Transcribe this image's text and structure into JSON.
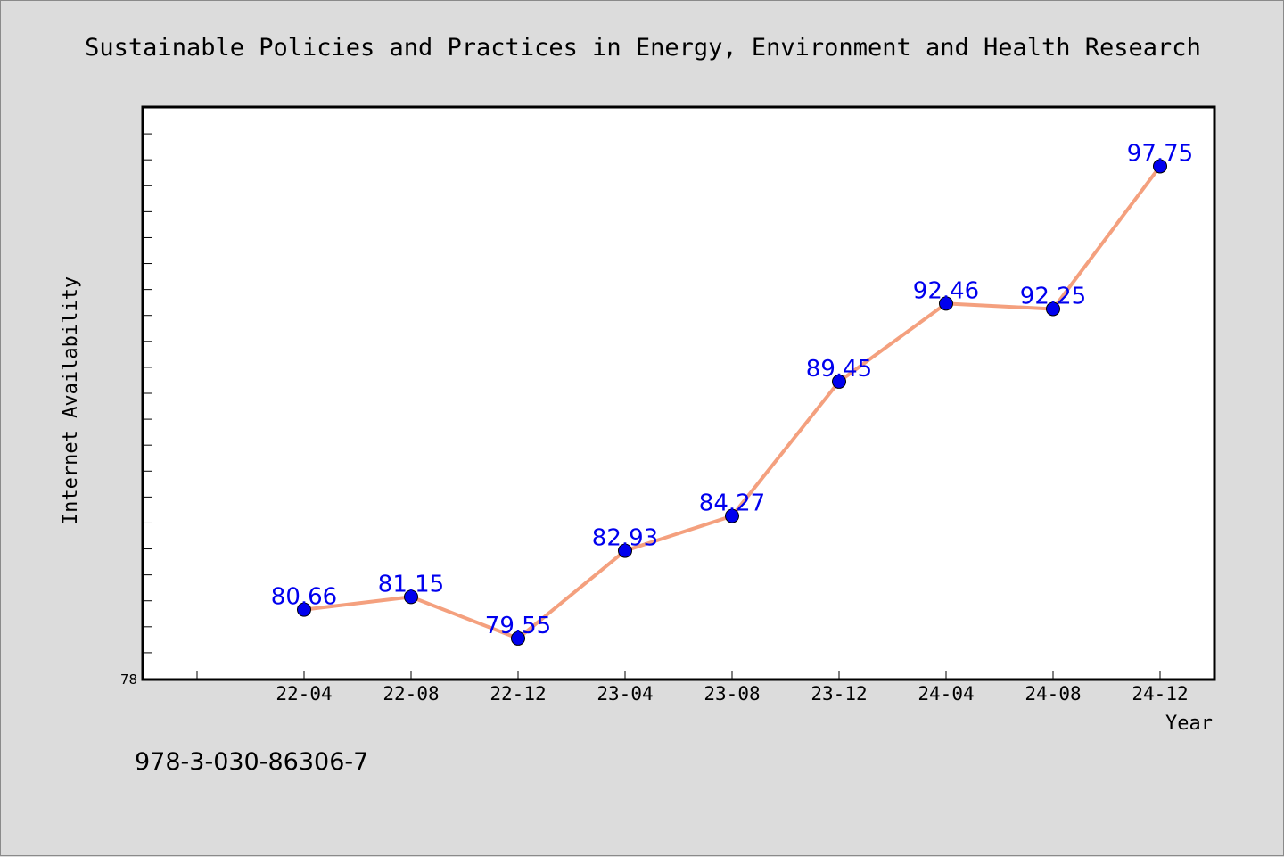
{
  "chart_data": {
    "type": "line",
    "title": "Sustainable Policies and Practices in Energy, Environment and Health Research",
    "xlabel": "Year",
    "ylabel": "Internet Availability",
    "categories": [
      "22-04",
      "22-08",
      "22-12",
      "23-04",
      "23-08",
      "23-12",
      "24-04",
      "24-08",
      "24-12"
    ],
    "series": [
      {
        "values": [
          80.66,
          81.15,
          79.55,
          82.93,
          84.27,
          89.45,
          92.46,
          92.25,
          97.75
        ]
      }
    ],
    "ylim": [
      78,
      100
    ],
    "y_tick_labels": [
      "78"
    ],
    "grid": false,
    "legend": "none",
    "colors": {
      "line": "#f4a07e",
      "marker": "#0000ee",
      "label": "#0000ee"
    }
  },
  "footer": {
    "isbn": "978-3-030-86306-7"
  }
}
